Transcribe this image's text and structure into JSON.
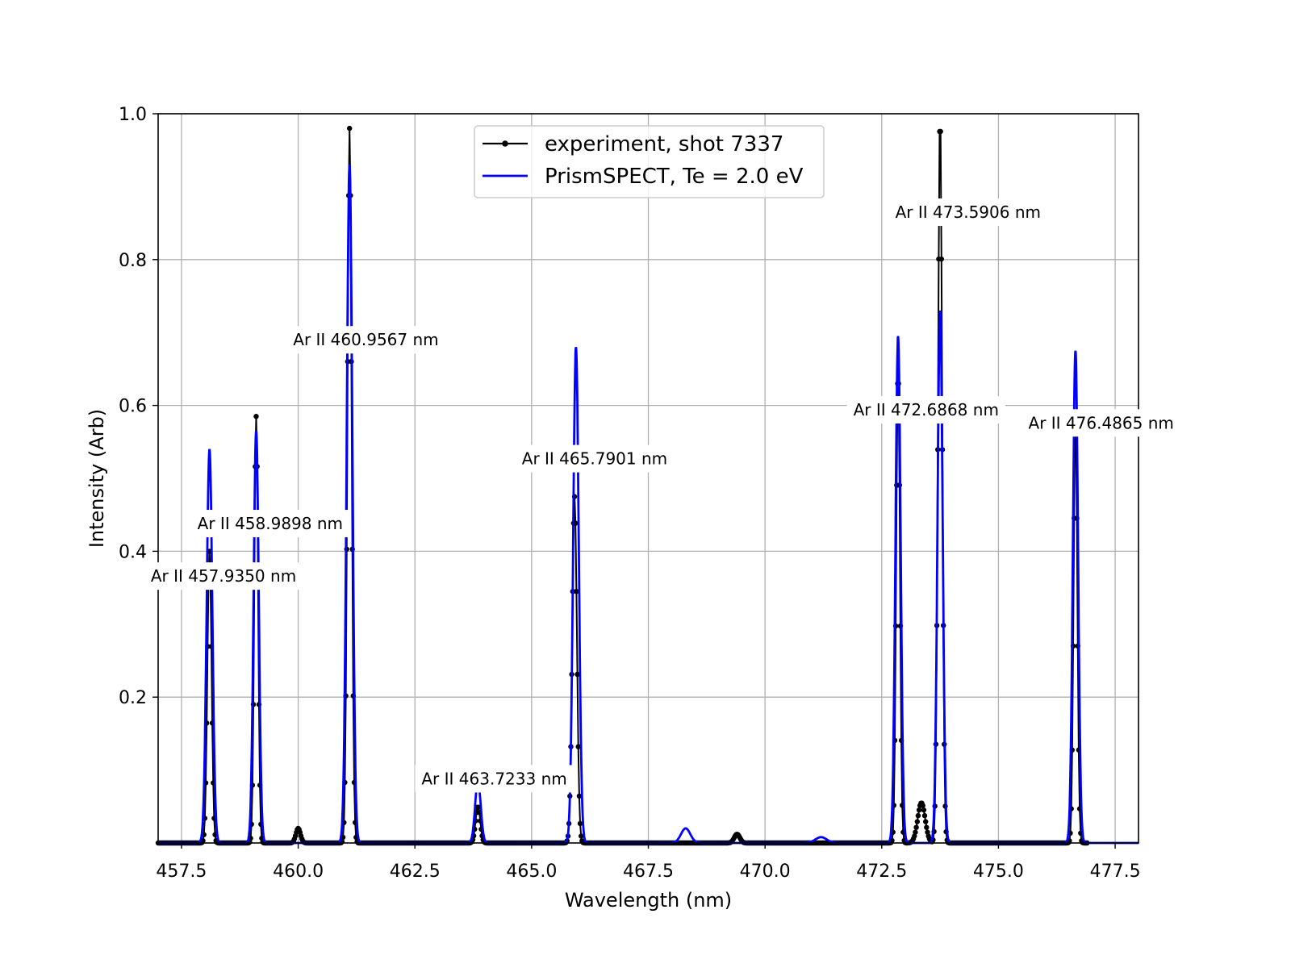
{
  "chart_data": {
    "type": "line",
    "title": "",
    "xlabel": "Wavelength (nm)",
    "ylabel": "Intensity (Arb)",
    "xlim": [
      457.0,
      478.0
    ],
    "ylim": [
      0.0,
      1.0
    ],
    "grid": true,
    "legend_position": "top-center",
    "x_ticks": [
      457.5,
      460.0,
      462.5,
      465.0,
      467.5,
      470.0,
      472.5,
      475.0,
      477.5
    ],
    "x_tick_labels": [
      "457.5",
      "460.0",
      "462.5",
      "465.0",
      "467.5",
      "470.0",
      "472.5",
      "475.0",
      "477.5"
    ],
    "y_ticks": [
      0.2,
      0.4,
      0.6,
      0.8,
      1.0
    ],
    "y_tick_labels": [
      "0.2",
      "0.4",
      "0.6",
      "0.8",
      "1.0"
    ],
    "series": [
      {
        "name": "experiment, shot 7337",
        "color": "#000000",
        "style": "line-with-markers",
        "x_range": [
          457.0,
          476.9
        ],
        "baseline": 0.0,
        "peaks": [
          {
            "x": 458.1,
            "y": 0.4,
            "w": 0.045
          },
          {
            "x": 459.1,
            "y": 0.585,
            "w": 0.04
          },
          {
            "x": 460.0,
            "y": 0.02,
            "w": 0.05
          },
          {
            "x": 461.1,
            "y": 0.98,
            "w": 0.045
          },
          {
            "x": 463.85,
            "y": 0.05,
            "w": 0.05
          },
          {
            "x": 465.92,
            "y": 0.475,
            "w": 0.05
          },
          {
            "x": 469.4,
            "y": 0.012,
            "w": 0.06
          },
          {
            "x": 472.85,
            "y": 0.65,
            "w": 0.04
          },
          {
            "x": 473.35,
            "y": 0.055,
            "w": 0.08
          },
          {
            "x": 473.75,
            "y": 1.0,
            "w": 0.045
          },
          {
            "x": 476.65,
            "y": 0.59,
            "w": 0.04
          }
        ]
      },
      {
        "name": "PrismSPECT, Te = 2.0 eV",
        "color": "#0000ff",
        "style": "line",
        "x_range": [
          457.0,
          478.0
        ],
        "baseline": 0.0,
        "peaks": [
          {
            "x": 458.1,
            "y": 0.54,
            "w": 0.06
          },
          {
            "x": 459.1,
            "y": 0.565,
            "w": 0.055
          },
          {
            "x": 461.1,
            "y": 0.93,
            "w": 0.06
          },
          {
            "x": 463.85,
            "y": 0.085,
            "w": 0.06
          },
          {
            "x": 465.95,
            "y": 0.68,
            "w": 0.06
          },
          {
            "x": 468.3,
            "y": 0.02,
            "w": 0.1
          },
          {
            "x": 471.2,
            "y": 0.008,
            "w": 0.12
          },
          {
            "x": 472.85,
            "y": 0.695,
            "w": 0.055
          },
          {
            "x": 473.75,
            "y": 0.73,
            "w": 0.055
          },
          {
            "x": 476.65,
            "y": 0.675,
            "w": 0.055
          }
        ]
      }
    ],
    "annotations": [
      {
        "text": "Ar II 457.9350 nm",
        "x": 458.4,
        "y": 0.366
      },
      {
        "text": "Ar II 458.9898 nm",
        "x": 459.4,
        "y": 0.438
      },
      {
        "text": "Ar II 460.9567 nm",
        "x": 461.45,
        "y": 0.69
      },
      {
        "text": "Ar II 463.7233 nm",
        "x": 464.2,
        "y": 0.088
      },
      {
        "text": "Ar II 465.7901 nm",
        "x": 466.35,
        "y": 0.527
      },
      {
        "text": "Ar II 472.6868 nm",
        "x": 473.45,
        "y": 0.594
      },
      {
        "text": "Ar II 473.5906 nm",
        "x": 474.35,
        "y": 0.865
      },
      {
        "text": "Ar II 476.4865 nm",
        "x": 477.2,
        "y": 0.576
      }
    ]
  }
}
